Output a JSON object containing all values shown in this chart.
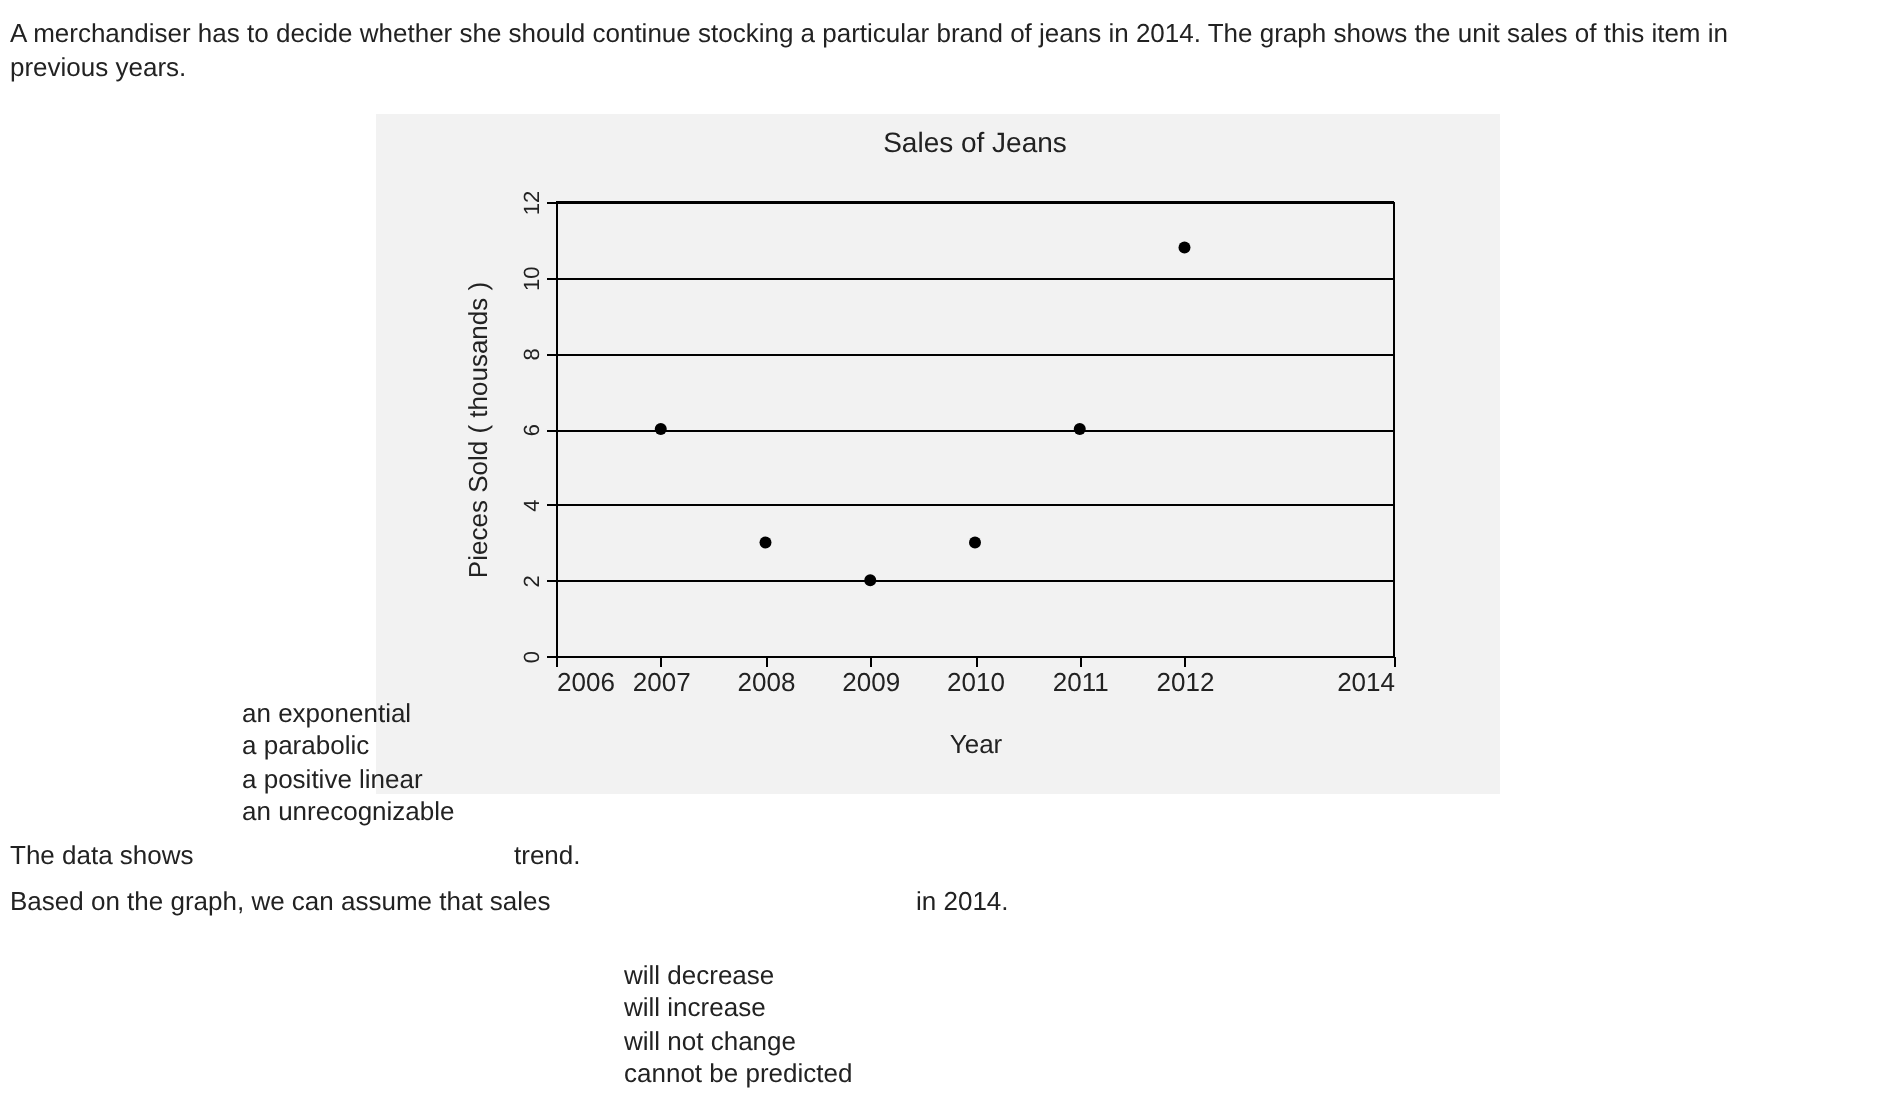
{
  "chart_data": {
    "type": "scatter",
    "title": "Sales of Jeans",
    "xlabel": "Year",
    "ylabel": "Pieces Sold ( thousands )",
    "x": [
      2007,
      2008,
      2009,
      2010,
      2011,
      2012
    ],
    "series": [
      {
        "color": "#000000",
        "values": [
          6,
          3,
          2,
          3,
          6,
          10.8
        ]
      }
    ],
    "xlim": [
      2006,
      2014
    ],
    "xticks": [
      2006,
      2007,
      2008,
      2009,
      2010,
      2011,
      2012,
      2014
    ],
    "ylim": [
      0,
      12
    ],
    "yticks": [
      0,
      2,
      4,
      6,
      8,
      10,
      12
    ],
    "grid": "y",
    "marker": "circle",
    "legend": false,
    "annotations": [
      "A merchandiser has to decide whether she should continue stocking a particular brand of jeans in 2014. The graph shows the unit sales of this item in",
      "previous years.",
      "an exponential",
      "a parabolic",
      "a positive linear",
      "an unrecognizable",
      "The data shows",
      "trend.",
      "Based on the graph, we can assume that sales",
      "in 2014.",
      "will decrease",
      "will increase",
      "will not change",
      "cannot be predicted"
    ]
  }
}
